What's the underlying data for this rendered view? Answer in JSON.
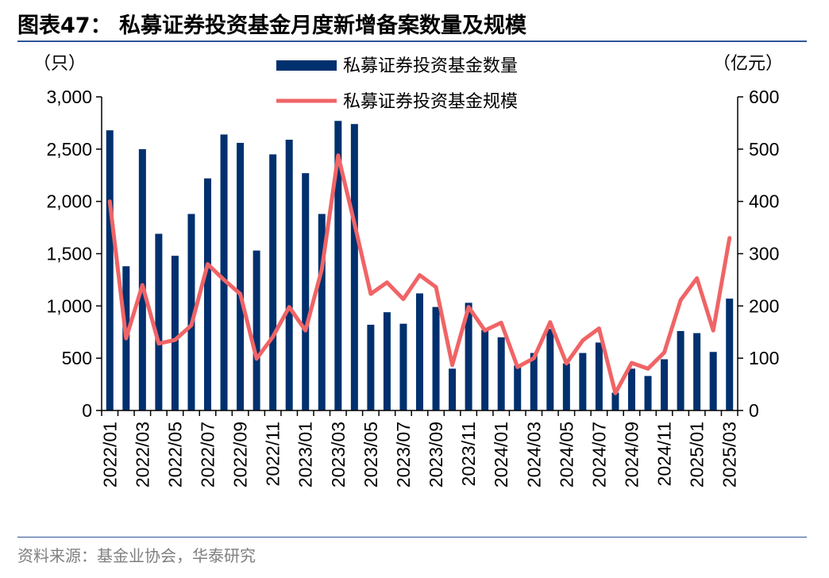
{
  "header": {
    "title": "图表47：  私募证券投资基金月度新增备案数量及规模"
  },
  "footer": {
    "source": "资料来源：基金业协会，华泰研究"
  },
  "colors": {
    "bar": "#00306e",
    "line": "#f06466",
    "rule": "#2f5597",
    "source_text": "#7f7f7f"
  },
  "chart_data": {
    "type": "bar+line",
    "left_unit": "（只）",
    "right_unit": "（亿元）",
    "left_ylim": [
      0,
      3000
    ],
    "left_ticks": [
      0,
      500,
      1000,
      1500,
      2000,
      2500,
      3000
    ],
    "left_tick_labels": [
      "0",
      "500",
      "1,000",
      "1,500",
      "2,000",
      "2,500",
      "3,000"
    ],
    "right_ylim": [
      0,
      600
    ],
    "right_ticks": [
      0,
      100,
      200,
      300,
      400,
      500,
      600
    ],
    "right_tick_labels": [
      "0",
      "100",
      "200",
      "300",
      "400",
      "500",
      "600"
    ],
    "legend_position": "top-center",
    "grid": false,
    "categories": [
      "2022/01",
      "2022/02",
      "2022/03",
      "2022/04",
      "2022/05",
      "2022/06",
      "2022/07",
      "2022/08",
      "2022/09",
      "2022/10",
      "2022/11",
      "2022/12",
      "2023/01",
      "2023/02",
      "2023/03",
      "2023/04",
      "2023/05",
      "2023/06",
      "2023/07",
      "2023/08",
      "2023/09",
      "2023/10",
      "2023/11",
      "2023/12",
      "2024/01",
      "2024/02",
      "2024/03",
      "2024/04",
      "2024/05",
      "2024/06",
      "2024/07",
      "2024/08",
      "2024/09",
      "2024/10",
      "2024/11",
      "2024/12",
      "2025/01",
      "2025/02",
      "2025/03"
    ],
    "tick_labels": [
      "2022/01",
      "2022/03",
      "2022/05",
      "2022/07",
      "2022/09",
      "2022/11",
      "2023/01",
      "2023/03",
      "2023/05",
      "2023/07",
      "2023/09",
      "2023/11",
      "2024/01",
      "2024/03",
      "2024/05",
      "2024/07",
      "2024/09",
      "2024/11",
      "2025/01",
      "2025/03"
    ],
    "series": [
      {
        "name": "私募证券投资基金数量",
        "type": "bar",
        "axis": "left",
        "values": [
          2680,
          1380,
          2500,
          1690,
          1480,
          1880,
          2220,
          2640,
          2560,
          1530,
          2450,
          2590,
          2270,
          1880,
          2770,
          2740,
          820,
          940,
          830,
          1120,
          990,
          400,
          1030,
          770,
          700,
          430,
          550,
          780,
          450,
          550,
          650,
          170,
          400,
          330,
          490,
          760,
          740,
          560,
          1070
        ]
      },
      {
        "name": "私募证券投资基金规模",
        "type": "line",
        "axis": "right",
        "values": [
          400,
          138,
          240,
          128,
          135,
          163,
          280,
          250,
          223,
          99,
          141,
          198,
          153,
          270,
          488,
          358,
          223,
          245,
          213,
          259,
          236,
          87,
          198,
          153,
          168,
          83,
          100,
          169,
          90,
          134,
          157,
          33,
          91,
          80,
          111,
          211,
          253,
          153,
          330
        ]
      }
    ]
  }
}
